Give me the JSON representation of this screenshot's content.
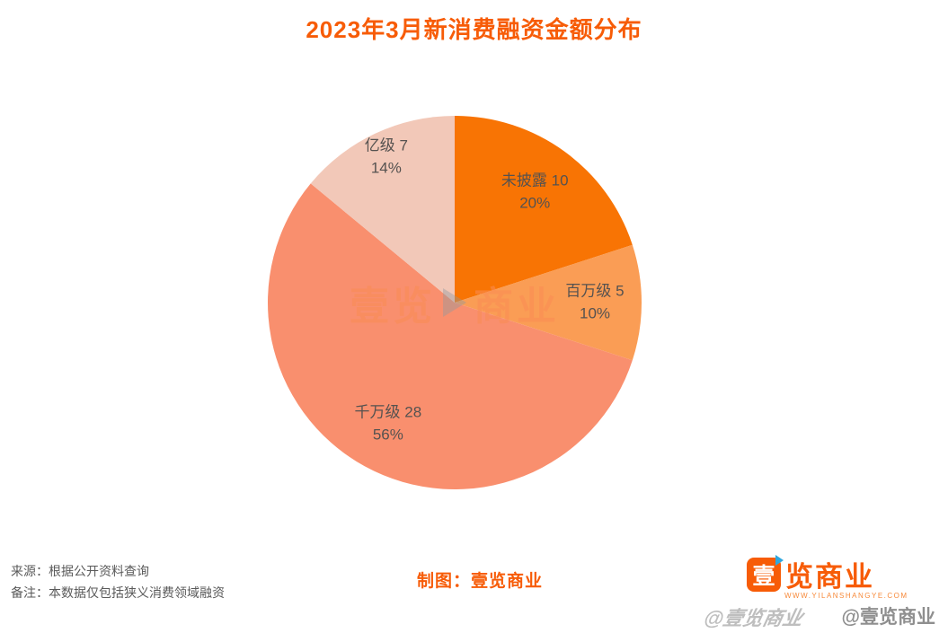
{
  "title": "2023年3月新消费融资金额分布",
  "chart_data": {
    "type": "pie",
    "title": "2023年3月新消费融资金额分布",
    "start_angle_deg": 0,
    "direction": "clockwise",
    "legend_position": "none",
    "slices": [
      {
        "label": "未披露",
        "count": 10,
        "percent": 20,
        "color": "#F87404",
        "label_r": 0.73
      },
      {
        "label": "百万级",
        "count": 5,
        "percent": 10,
        "color": "#FA9D55",
        "label_r": 0.75
      },
      {
        "label": "千万级",
        "count": 28,
        "percent": 56,
        "color": "#F98F6E",
        "label_r": 0.74
      },
      {
        "label": "亿级",
        "count": 7,
        "percent": 14,
        "color": "#F2C8B8",
        "label_r": 0.86
      }
    ],
    "label_format": "{label} {count}\n{percent}%"
  },
  "watermark": {
    "text_left": "壹览",
    "text_right": "商业"
  },
  "footer": {
    "source_line": "来源：根据公开资料查询",
    "note_line": "备注：本数据仅包括狭义消费领域融资",
    "credit": "制图：壹览商业"
  },
  "brand": {
    "logo_char": "壹",
    "logo_rest": "览商业",
    "logo_url": "WWW.YILANSHANGYE.COM",
    "handle": "@壹览商业",
    "orange": "#F75C07",
    "blue": "#2FA8DF"
  }
}
